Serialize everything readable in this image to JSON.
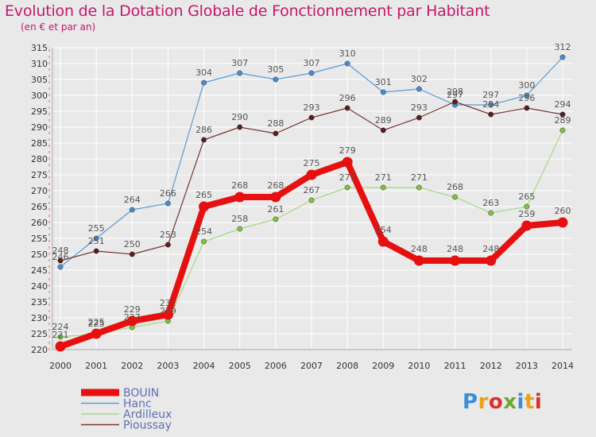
{
  "title": "Evolution de la Dotation Globale de Fonctionnement par Habitant",
  "subtitle": "(en € et par an)",
  "logo_text": "Proxiti",
  "logo_colors": [
    "#3a8fd6",
    "#e8a21a",
    "#d7322e",
    "#6aa92e",
    "#3a8fd6",
    "#e8a21a",
    "#d7322e"
  ],
  "chart_data": {
    "type": "line",
    "title": "Evolution de la Dotation Globale de Fonctionnement par Habitant",
    "subtitle": "(en € et par an)",
    "xlabel": "",
    "ylabel": "",
    "ylim": [
      220,
      315
    ],
    "y_ticks": [
      220,
      225,
      230,
      235,
      240,
      245,
      250,
      255,
      260,
      265,
      270,
      275,
      280,
      285,
      290,
      295,
      300,
      305,
      310,
      315
    ],
    "x": [
      2000,
      2001,
      2002,
      2003,
      2004,
      2005,
      2006,
      2007,
      2008,
      2009,
      2010,
      2011,
      2012,
      2013,
      2014
    ],
    "grid": true,
    "legend_position": "bottom-left",
    "series": [
      {
        "name": "Hanc",
        "color": "#5b9bd5",
        "marker": "#4a8ccc",
        "values": [
          246,
          255,
          264,
          266,
          304,
          307,
          305,
          307,
          310,
          301,
          302,
          297,
          297,
          300,
          312
        ]
      },
      {
        "name": "Pioussay",
        "color": "#7a3535",
        "marker": "#5a1e1e",
        "values": [
          248,
          251,
          250,
          253,
          286,
          290,
          288,
          293,
          296,
          289,
          293,
          298,
          294,
          296,
          294
        ]
      },
      {
        "name": "Ardilleux",
        "color": "#a8d882",
        "marker": "#7cc442",
        "values": [
          224,
          225,
          227,
          229,
          254,
          258,
          261,
          267,
          271,
          271,
          271,
          268,
          263,
          265,
          289
        ]
      },
      {
        "name": "BOUIN",
        "color": "#e61010",
        "marker": "#e61010",
        "values": [
          221,
          225,
          229,
          231,
          265,
          268,
          268,
          275,
          279,
          254,
          248,
          248,
          248,
          259,
          260
        ]
      }
    ],
    "legend_order": [
      "BOUIN",
      "Hanc",
      "Ardilleux",
      "Pioussay"
    ]
  }
}
